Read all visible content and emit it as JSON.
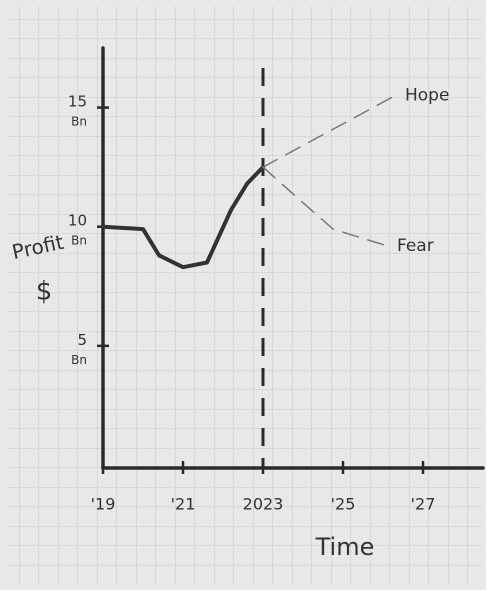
{
  "chart_data": {
    "type": "line",
    "y_label": "Profit",
    "y_unit": "$",
    "x_label": "Time",
    "xlim": [
      2019,
      2028.5
    ],
    "ylim": [
      0,
      17.5
    ],
    "xticks": [
      {
        "value": 2019,
        "label": "'19"
      },
      {
        "value": 2021,
        "label": "'21"
      },
      2023,
      {
        "value": 2025,
        "label": "'25"
      },
      {
        "value": 2027,
        "label": "'27"
      }
    ],
    "yticks": [
      {
        "value": 5,
        "label": "5 Bn"
      },
      {
        "value": 10,
        "label": "10 Bn"
      },
      {
        "value": 15,
        "label": "15 Bn"
      }
    ],
    "vline": 2023,
    "series": [
      {
        "name": null,
        "color": "#333333",
        "style": "solid",
        "x": [
          2019,
          2020,
          2020.4,
          2021,
          2021.6,
          2022.2,
          2022.6,
          2023
        ],
        "values": [
          10,
          9.9,
          8.8,
          8.3,
          8.5,
          10.7,
          11.8,
          12.5
        ]
      },
      {
        "name": "Hope",
        "color": "#777777",
        "style": "dashed",
        "x": [
          2023,
          2026.3
        ],
        "values": [
          12.5,
          15.5
        ]
      },
      {
        "name": "Fear",
        "color": "#777777",
        "style": "dashed",
        "x": [
          2023,
          2023.8,
          2024.75,
          2026.1
        ],
        "values": [
          12.5,
          11.3,
          9.9,
          9.2
        ]
      }
    ]
  }
}
